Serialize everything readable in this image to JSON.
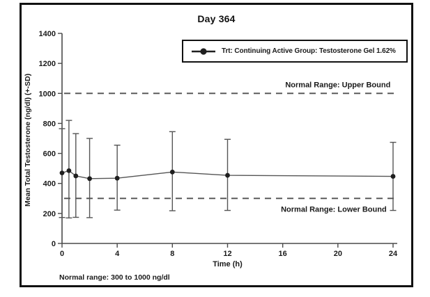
{
  "figure": {
    "background": "#ffffff",
    "border_color": "#111111"
  },
  "chart_data": {
    "type": "line",
    "title": "Day 364",
    "xlabel": "Time (h)",
    "ylabel": "Mean Total Testosterone (ng/dl) (+-SD)",
    "footnote": "Normal range: 300 to 1000 ng/dl",
    "xlim": [
      0,
      24
    ],
    "ylim": [
      0,
      1400
    ],
    "xticks": [
      0,
      4,
      8,
      12,
      16,
      20,
      24
    ],
    "yticks": [
      0,
      200,
      400,
      600,
      800,
      1000,
      1200,
      1400
    ],
    "grid": false,
    "legend_position": "top-right",
    "x": [
      0,
      0.5,
      1,
      2,
      4,
      8,
      12,
      24
    ],
    "series": [
      {
        "name": "Trt: Continuing Active Group: Testosterone Gel 1.62%",
        "values": [
          470,
          485,
          450,
          432,
          435,
          476,
          454,
          447
        ],
        "err_top": [
          765,
          820,
          732,
          700,
          655,
          745,
          694,
          674
        ],
        "err_bottom": [
          173,
          170,
          174,
          172,
          222,
          218,
          220,
          220
        ],
        "marker": "filled-circle"
      }
    ],
    "reference_lines": [
      {
        "y": 1000,
        "label": "Normal Range: Upper Bound",
        "label_x": 20,
        "label_side": "above",
        "style": "dashed"
      },
      {
        "y": 300,
        "label": "Normal Range: Lower Bound",
        "label_x": 19.7,
        "label_side": "below",
        "style": "dashed"
      }
    ],
    "colors": {
      "axis": "#4a4a4a",
      "text": "#1a1a1a",
      "reference_line": "#5a5a5a",
      "series_line": "#555555",
      "marker_fill": "#1f1f1f"
    }
  }
}
